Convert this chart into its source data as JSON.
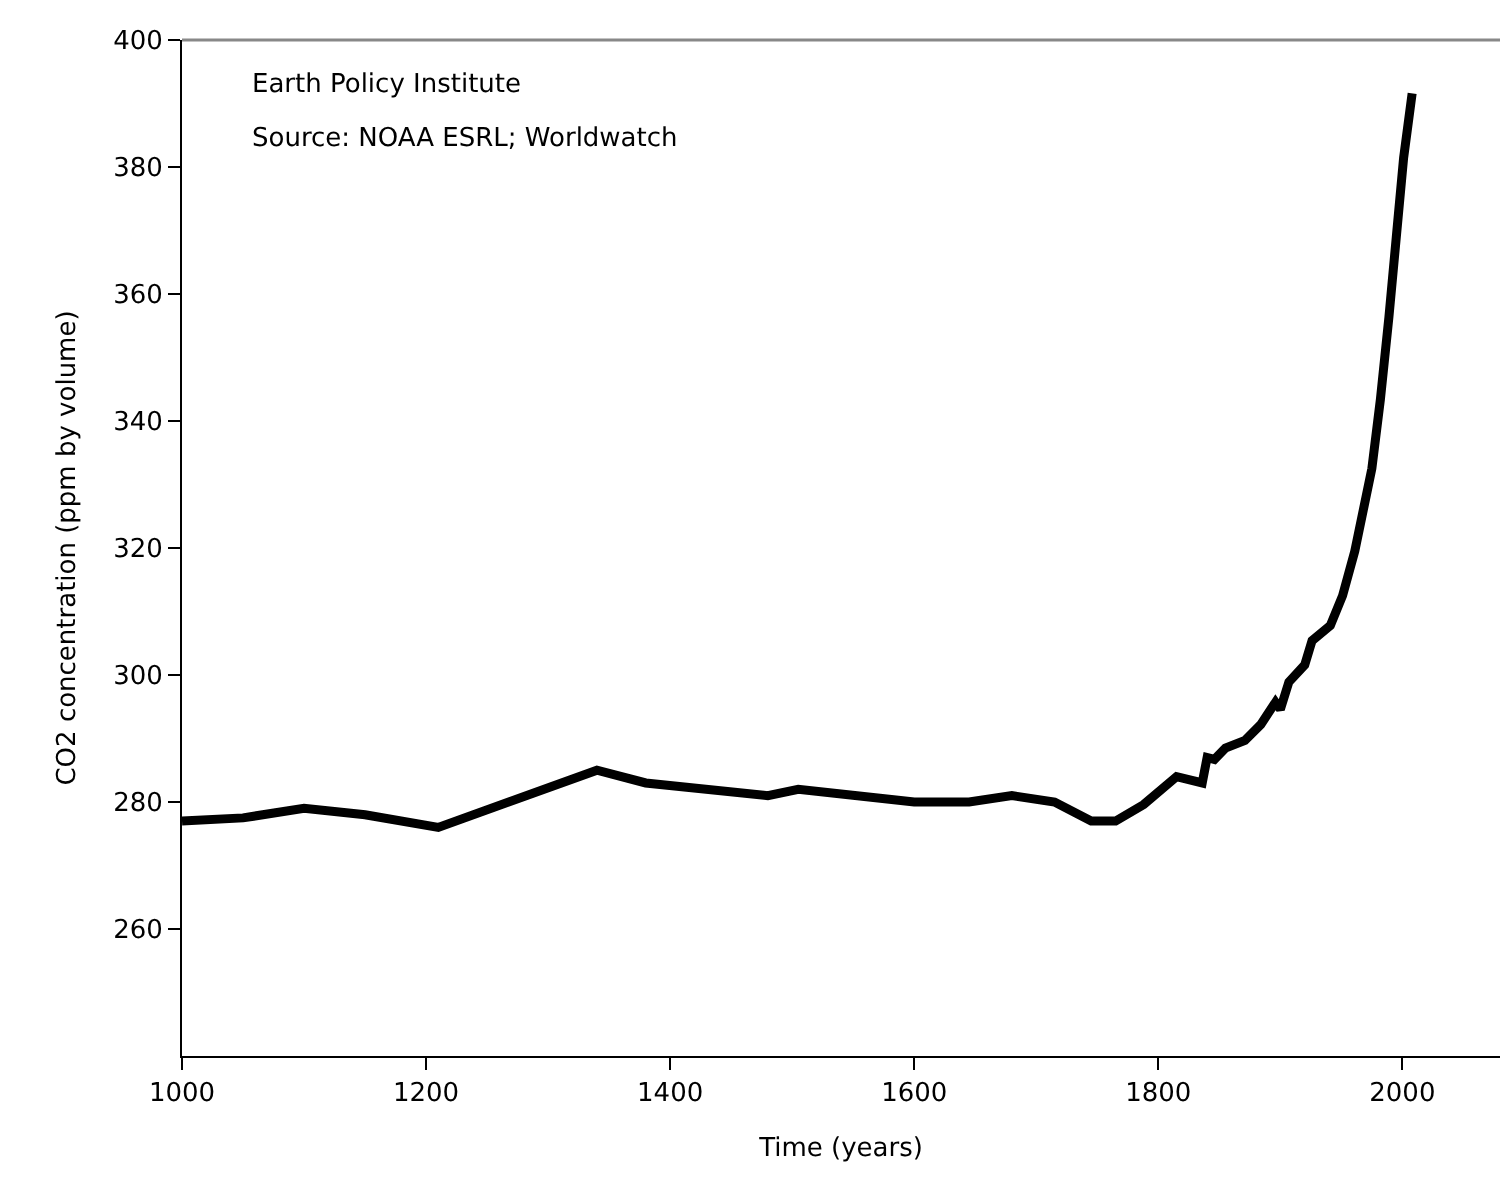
{
  "chart_data": {
    "type": "line",
    "xlabel": "Time (years)",
    "ylabel": "CO2 concentration (ppm by volume)",
    "annotations": [
      "Earth Policy Institute",
      "Source: NOAA ESRL; Worldwatch"
    ],
    "x": [
      1000,
      1050,
      1100,
      1150,
      1210,
      1340,
      1380,
      1480,
      1505,
      1600,
      1645,
      1680,
      1715,
      1745,
      1765,
      1788,
      1815,
      1836,
      1840,
      1846,
      1855,
      1871,
      1884,
      1896,
      1900,
      1907,
      1920,
      1926,
      1941,
      1951,
      1961,
      1968,
      1975,
      1982,
      1989,
      1995,
      2001,
      2008
    ],
    "series": [
      {
        "color": "#000000",
        "values": [
          277,
          277.5,
          279,
          278,
          276,
          285,
          283,
          281,
          282,
          280,
          280,
          281,
          280,
          277,
          277,
          279.6,
          284,
          283,
          287,
          286.7,
          288.5,
          289.7,
          292.2,
          295.7,
          294.6,
          298.9,
          301.6,
          305.4,
          307.8,
          312.5,
          319.5,
          326,
          332.5,
          343.4,
          356.4,
          368.9,
          381.4,
          391.6
        ]
      }
    ],
    "xlim": [
      1000,
      2080
    ],
    "xticks": [
      1000,
      1200,
      1400,
      1600,
      1800,
      2000
    ],
    "ylim": [
      240,
      400
    ],
    "yticks": [
      260,
      280,
      300,
      320,
      340,
      360,
      380,
      400
    ],
    "marker": "none",
    "line_style": "solid"
  }
}
